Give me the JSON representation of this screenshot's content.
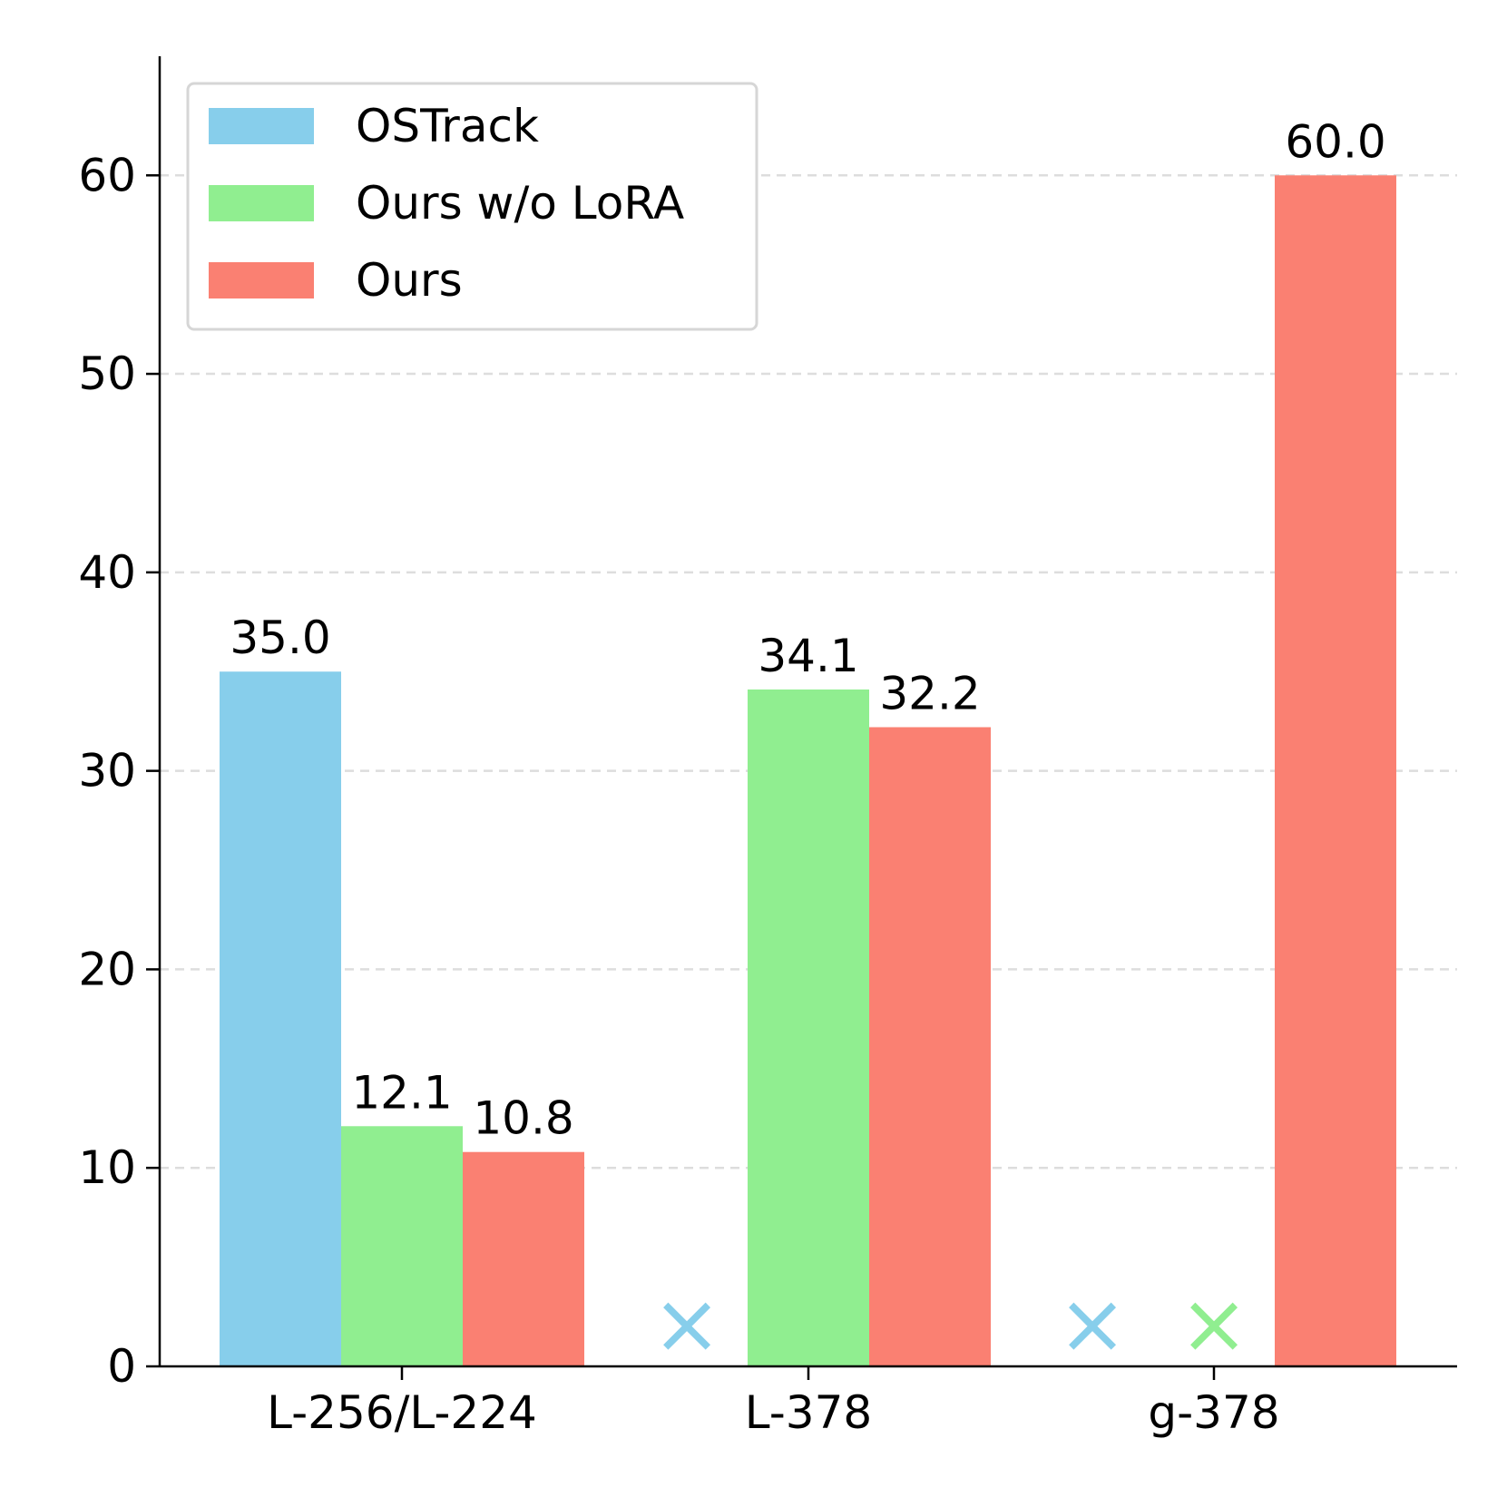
{
  "chart_data": {
    "type": "bar",
    "categories": [
      "L-256/L-224",
      "L-378",
      "g-378"
    ],
    "series": [
      {
        "name": "OSTrack",
        "color": "#87CEEB",
        "values": [
          35.0,
          null,
          null
        ],
        "labels": [
          "35.0",
          "",
          ""
        ]
      },
      {
        "name": "Ours w/o LoRA",
        "color": "#90EE90",
        "values": [
          12.1,
          34.1,
          null
        ],
        "labels": [
          "12.1",
          "34.1",
          ""
        ]
      },
      {
        "name": "Ours",
        "color": "#FA8072",
        "values": [
          10.8,
          32.2,
          60.0
        ],
        "labels": [
          "10.8",
          "32.2",
          "60.0"
        ]
      }
    ],
    "missing_marker": "×",
    "ylim": [
      0,
      66
    ],
    "yticks": [
      "0",
      "10",
      "20",
      "30",
      "40",
      "50",
      "60"
    ],
    "xlabel": "",
    "ylabel": "",
    "grid": "horizontal dashed",
    "legend_position": "top-left"
  }
}
